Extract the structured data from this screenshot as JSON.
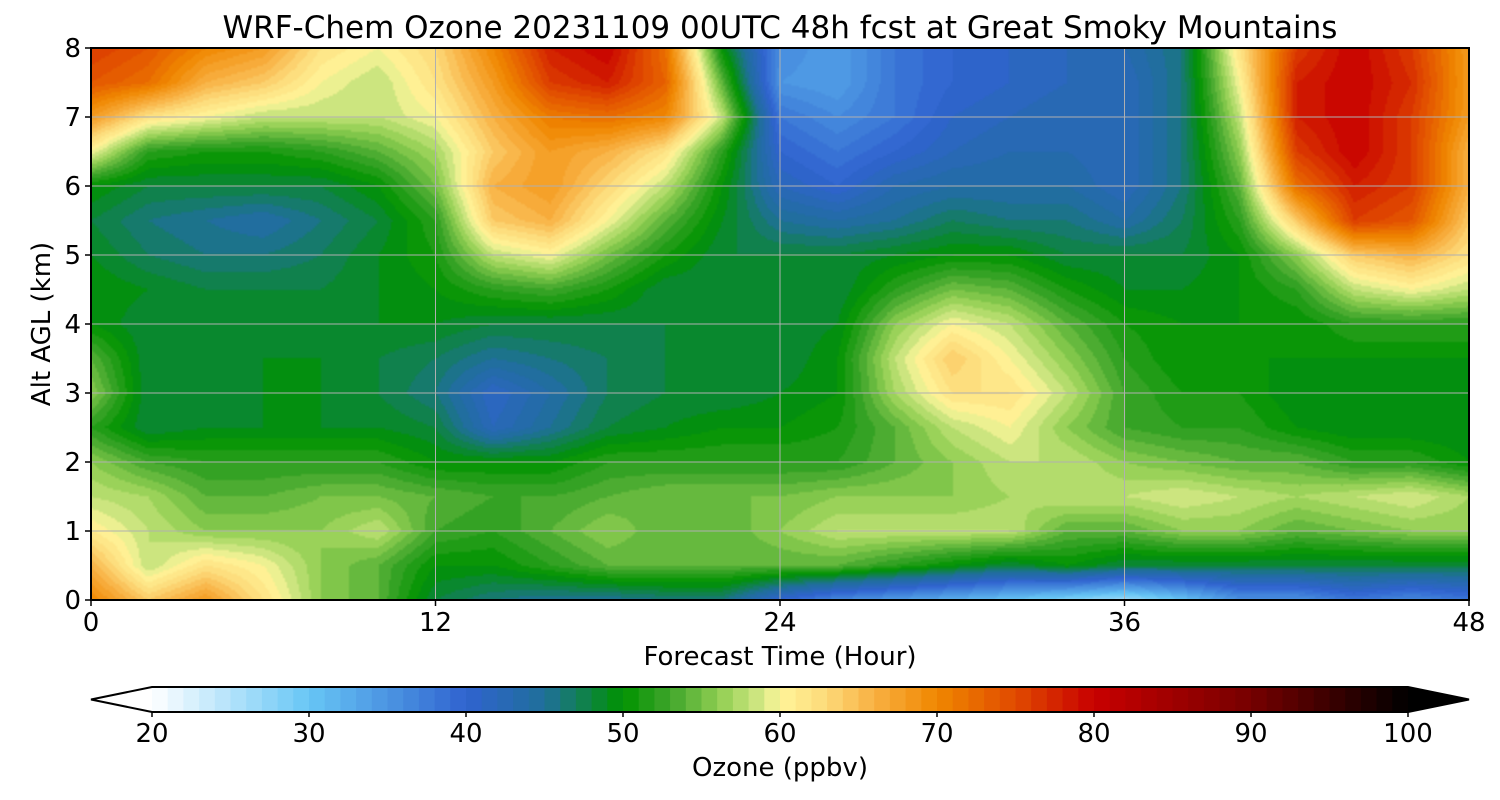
{
  "chart_data": {
    "type": "heatmap",
    "title": "WRF-Chem Ozone  20231109 00UTC 48h fcst at Great Smoky Mountains",
    "xlabel": "Forecast Time (Hour)",
    "ylabel": "Alt AGL (km)",
    "xlim": [
      0,
      48
    ],
    "ylim": [
      0,
      8
    ],
    "x_ticks": [
      0,
      12,
      24,
      36,
      48
    ],
    "y_ticks": [
      0,
      1,
      2,
      3,
      4,
      5,
      6,
      7,
      8
    ],
    "grid": true,
    "x_hours": [
      0,
      2,
      4,
      6,
      8,
      10,
      12,
      14,
      16,
      18,
      20,
      22,
      24,
      26,
      28,
      30,
      32,
      34,
      36,
      38,
      40,
      42,
      44,
      46,
      48
    ],
    "y_km": [
      0,
      0.5,
      1,
      1.5,
      2,
      2.5,
      3,
      3.5,
      4,
      4.5,
      5,
      5.5,
      6,
      6.5,
      7,
      7.5,
      8
    ],
    "ozone_ppbv": [
      [
        70,
        64,
        68,
        62,
        56,
        54,
        48,
        46,
        45,
        45,
        46,
        46,
        40,
        36,
        34,
        32,
        30,
        28,
        26,
        30,
        35,
        35,
        38,
        36,
        38
      ],
      [
        66,
        58,
        62,
        60,
        56,
        54,
        50,
        50,
        52,
        54,
        54,
        54,
        54,
        54,
        52,
        50,
        48,
        50,
        48,
        48,
        48,
        48,
        48,
        48,
        48
      ],
      [
        61,
        58,
        56,
        56,
        56,
        58,
        53,
        52,
        54,
        56,
        54,
        54,
        56,
        58,
        58,
        58,
        58,
        54,
        54,
        56,
        56,
        54,
        55,
        56,
        56
      ],
      [
        58,
        57,
        54,
        54,
        55,
        55,
        54,
        53,
        53,
        54,
        55,
        55,
        55,
        56,
        56,
        56,
        57,
        58,
        58,
        59,
        58,
        57,
        58,
        59,
        57
      ],
      [
        56,
        53,
        52,
        52,
        52,
        52,
        50,
        50,
        50,
        52,
        52,
        52,
        52,
        52,
        54,
        56,
        58,
        58,
        56,
        55,
        54,
        54,
        52,
        52,
        50
      ],
      [
        52,
        48,
        49,
        49,
        49,
        49,
        48,
        42,
        45,
        48,
        49,
        50,
        50,
        51,
        54,
        58,
        60,
        56,
        53,
        52,
        52,
        50,
        49,
        49,
        49
      ],
      [
        56,
        48,
        48,
        49,
        49,
        48,
        46,
        41,
        44,
        47,
        48,
        48,
        49,
        50,
        57,
        62,
        62,
        58,
        53,
        51,
        51,
        49,
        49,
        49,
        49
      ],
      [
        54,
        48,
        48,
        49,
        49,
        48,
        47,
        45,
        46,
        47,
        48,
        48,
        48,
        50,
        58,
        64,
        60,
        56,
        52,
        50,
        50,
        50,
        50,
        50,
        50
      ],
      [
        50,
        48,
        48,
        48,
        49,
        49,
        49,
        48,
        48,
        48,
        48,
        48,
        48,
        49,
        56,
        60,
        58,
        54,
        51,
        50,
        50,
        50,
        52,
        52,
        52
      ],
      [
        50,
        49,
        48,
        48,
        48,
        49,
        50,
        52,
        53,
        51,
        48,
        48,
        48,
        48,
        52,
        55,
        54,
        51,
        49,
        49,
        50,
        52,
        58,
        60,
        58
      ],
      [
        49,
        47,
        46,
        46,
        47,
        49,
        51,
        58,
        60,
        55,
        51,
        48,
        48,
        48,
        49,
        50,
        50,
        48,
        48,
        48,
        50,
        56,
        64,
        66,
        62
      ],
      [
        48,
        46,
        45,
        44,
        46,
        48,
        52,
        64,
        66,
        60,
        54,
        49,
        45,
        44,
        45,
        47,
        46,
        46,
        44,
        47,
        52,
        64,
        76,
        74,
        64
      ],
      [
        50,
        48,
        48,
        48,
        48,
        50,
        55,
        66,
        68,
        63,
        58,
        50,
        42,
        40,
        43,
        44,
        44,
        44,
        42,
        46,
        54,
        72,
        78,
        76,
        66
      ],
      [
        60,
        52,
        51,
        51,
        52,
        54,
        57,
        64,
        68,
        66,
        62,
        52,
        40,
        38,
        40,
        42,
        43,
        43,
        42,
        46,
        56,
        76,
        80,
        76,
        66
      ],
      [
        68,
        62,
        60,
        58,
        58,
        58,
        60,
        66,
        71,
        72,
        70,
        58,
        38,
        36,
        38,
        41,
        42,
        43,
        42,
        46,
        58,
        78,
        80,
        76,
        68
      ],
      [
        74,
        72,
        66,
        64,
        60,
        58,
        62,
        68,
        76,
        78,
        73,
        54,
        35,
        34,
        38,
        40,
        41,
        42,
        42,
        46,
        60,
        78,
        80,
        77,
        68
      ],
      [
        76,
        74,
        70,
        68,
        62,
        60,
        63,
        70,
        78,
        80,
        72,
        50,
        36,
        34,
        38,
        40,
        41,
        42,
        43,
        46,
        62,
        76,
        80,
        76,
        68
      ]
    ],
    "colorbar": {
      "label": "Ozone  (ppbv)",
      "min": 20,
      "max": 100,
      "step": 1,
      "extend": "both",
      "ticks": [
        20,
        30,
        40,
        50,
        60,
        70,
        80,
        90,
        100
      ],
      "stops": [
        [
          20,
          "#ffffff"
        ],
        [
          30,
          "#67c6f5"
        ],
        [
          40,
          "#3063cf"
        ],
        [
          45,
          "#1f6f9a"
        ],
        [
          50,
          "#009300"
        ],
        [
          53,
          "#3fa52b"
        ],
        [
          56,
          "#8dcd50"
        ],
        [
          59,
          "#d9ea88"
        ],
        [
          60,
          "#fff59a"
        ],
        [
          63,
          "#fdd978"
        ],
        [
          66,
          "#f8b042"
        ],
        [
          70,
          "#f08700"
        ],
        [
          75,
          "#e04a00"
        ],
        [
          80,
          "#c80000"
        ],
        [
          90,
          "#760000"
        ],
        [
          100,
          "#000000"
        ]
      ]
    }
  }
}
